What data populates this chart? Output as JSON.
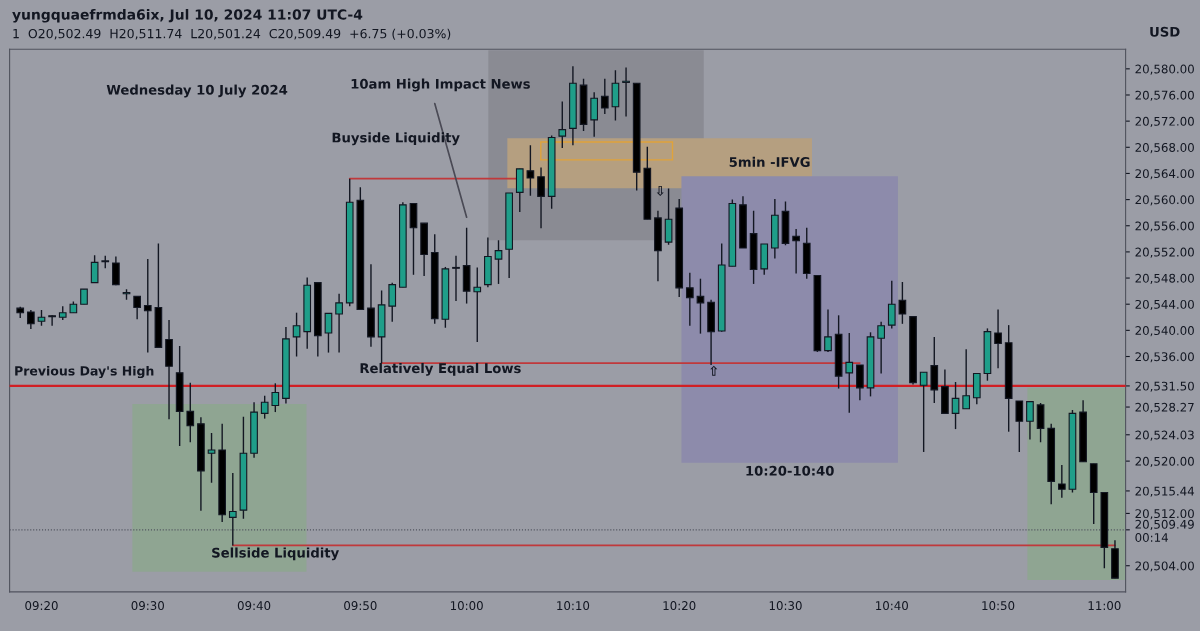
{
  "chart_data": {
    "type": "candlestick",
    "title": "yungquaefrmda6ix, Jul 10, 2024 11:07 UTC-4",
    "subtitle": "1  O20,502.49  H20,511.74  L20,501.24  C20,509.49  +6.75 (+0.03%)",
    "x": [
      "2024-07-10T09:18",
      "2024-07-10T09:19",
      "2024-07-10T09:20",
      "2024-07-10T09:21",
      "2024-07-10T09:22",
      "2024-07-10T09:23",
      "2024-07-10T09:24",
      "2024-07-10T09:25",
      "2024-07-10T09:26",
      "2024-07-10T09:27",
      "2024-07-10T09:28",
      "2024-07-10T09:29",
      "2024-07-10T09:30",
      "2024-07-10T09:31",
      "2024-07-10T09:32",
      "2024-07-10T09:33",
      "2024-07-10T09:34",
      "2024-07-10T09:35",
      "2024-07-10T09:36",
      "2024-07-10T09:37",
      "2024-07-10T09:38",
      "2024-07-10T09:39",
      "2024-07-10T09:40",
      "2024-07-10T09:41",
      "2024-07-10T09:42",
      "2024-07-10T09:43",
      "2024-07-10T09:44",
      "2024-07-10T09:45",
      "2024-07-10T09:46",
      "2024-07-10T09:47",
      "2024-07-10T09:48",
      "2024-07-10T09:49",
      "2024-07-10T09:50",
      "2024-07-10T09:51",
      "2024-07-10T09:52",
      "2024-07-10T09:53",
      "2024-07-10T09:54",
      "2024-07-10T09:55",
      "2024-07-10T09:56",
      "2024-07-10T09:57",
      "2024-07-10T09:58",
      "2024-07-10T09:59",
      "2024-07-10T10:00",
      "2024-07-10T10:01",
      "2024-07-10T10:02",
      "2024-07-10T10:03",
      "2024-07-10T10:04",
      "2024-07-10T10:05",
      "2024-07-10T10:06",
      "2024-07-10T10:07",
      "2024-07-10T10:08",
      "2024-07-10T10:09",
      "2024-07-10T10:10",
      "2024-07-10T10:11",
      "2024-07-10T10:12",
      "2024-07-10T10:13",
      "2024-07-10T10:14",
      "2024-07-10T10:15",
      "2024-07-10T10:16",
      "2024-07-10T10:17",
      "2024-07-10T10:18",
      "2024-07-10T10:19",
      "2024-07-10T10:20",
      "2024-07-10T10:21",
      "2024-07-10T10:22",
      "2024-07-10T10:23",
      "2024-07-10T10:24",
      "2024-07-10T10:25",
      "2024-07-10T10:26",
      "2024-07-10T10:27",
      "2024-07-10T10:28",
      "2024-07-10T10:29",
      "2024-07-10T10:30",
      "2024-07-10T10:31",
      "2024-07-10T10:32",
      "2024-07-10T10:33",
      "2024-07-10T10:34",
      "2024-07-10T10:35",
      "2024-07-10T10:36",
      "2024-07-10T10:37",
      "2024-07-10T10:38",
      "2024-07-10T10:39",
      "2024-07-10T10:40",
      "2024-07-10T10:41",
      "2024-07-10T10:42",
      "2024-07-10T10:43",
      "2024-07-10T10:44",
      "2024-07-10T10:45",
      "2024-07-10T10:46",
      "2024-07-10T10:47",
      "2024-07-10T10:48",
      "2024-07-10T10:49",
      "2024-07-10T10:50",
      "2024-07-10T10:51",
      "2024-07-10T10:52",
      "2024-07-10T10:53",
      "2024-07-10T10:54",
      "2024-07-10T10:55",
      "2024-07-10T10:56",
      "2024-07-10T10:57",
      "2024-07-10T10:58",
      "2024-07-10T10:59",
      "2024-07-10T11:00",
      "2024-07-10T11:01"
    ],
    "ohlc": [
      [
        20543.4,
        20543.6,
        20541.9,
        20542.7
      ],
      [
        20542.8,
        20543.1,
        20540.2,
        20541.0
      ],
      [
        20541.4,
        20543.1,
        20540.7,
        20542.0
      ],
      [
        20542.1,
        20542.3,
        20540.7,
        20542.1
      ],
      [
        20542.0,
        20543.7,
        20541.6,
        20542.7
      ],
      [
        20542.7,
        20544.4,
        20542.7,
        20544.0
      ],
      [
        20544.0,
        20546.3,
        20544.0,
        20546.3
      ],
      [
        20547.3,
        20551.5,
        20547.3,
        20550.4
      ],
      [
        20550.5,
        20551.4,
        20549.5,
        20550.5
      ],
      [
        20550.3,
        20551.3,
        20546.9,
        20547.0
      ],
      [
        20545.6,
        20546.3,
        20544.7,
        20545.8
      ],
      [
        20545.2,
        20545.2,
        20541.7,
        20543.5
      ],
      [
        20543.8,
        20550.9,
        20536.6,
        20543.0
      ],
      [
        20543.5,
        20553.3,
        20537.4,
        20537.4
      ],
      [
        20538.6,
        20541.6,
        20526.4,
        20534.5
      ],
      [
        20533.5,
        20537.6,
        20522.3,
        20527.6
      ],
      [
        20527.6,
        20532.0,
        20522.9,
        20525.4
      ],
      [
        20525.7,
        20526.7,
        20512.4,
        20518.5
      ],
      [
        20521.2,
        20524.3,
        20516.7,
        20521.7
      ],
      [
        20521.7,
        20525.7,
        20510.7,
        20511.8
      ],
      [
        20511.4,
        20518.2,
        20507.1,
        20512.3
      ],
      [
        20512.5,
        20526.8,
        20511.2,
        20521.2
      ],
      [
        20521.2,
        20529.0,
        20520.5,
        20527.5
      ],
      [
        20527.3,
        20530.0,
        20526.5,
        20529.0
      ],
      [
        20528.5,
        20531.9,
        20527.5,
        20530.5
      ],
      [
        20529.6,
        20540.5,
        20528.8,
        20538.7
      ],
      [
        20539.0,
        20542.7,
        20536.0,
        20540.7
      ],
      [
        20539.8,
        20548.1,
        20537.2,
        20546.9
      ],
      [
        20547.3,
        20547.3,
        20536.0,
        20539.2
      ],
      [
        20539.6,
        20542.6,
        20536.6,
        20542.6
      ],
      [
        20542.5,
        20545.6,
        20536.6,
        20544.2
      ],
      [
        20544.2,
        20563.2,
        20543.7,
        20559.6
      ],
      [
        20559.9,
        20561.9,
        20543.2,
        20543.2
      ],
      [
        20543.4,
        20550.1,
        20537.5,
        20539.0
      ],
      [
        20539.0,
        20546.1,
        20535.0,
        20543.9
      ],
      [
        20543.7,
        20547.3,
        20541.3,
        20547.0
      ],
      [
        20546.6,
        20559.6,
        20546.6,
        20559.2
      ],
      [
        20559.4,
        20559.4,
        20548.5,
        20555.7
      ],
      [
        20556.4,
        20556.4,
        20548.3,
        20551.6
      ],
      [
        20551.9,
        20554.7,
        20541.0,
        20541.8
      ],
      [
        20541.7,
        20549.7,
        20540.4,
        20549.4
      ],
      [
        20549.5,
        20551.4,
        20544.5,
        20549.5
      ],
      [
        20549.9,
        20555.7,
        20544.1,
        20546.0
      ],
      [
        20545.9,
        20549.6,
        20538.2,
        20546.6
      ],
      [
        20547.0,
        20554.2,
        20546.6,
        20551.3
      ],
      [
        20550.9,
        20553.8,
        20547.1,
        20552.2
      ],
      [
        20552.4,
        20561.0,
        20548.0,
        20561.0
      ],
      [
        20561.1,
        20564.7,
        20558.1,
        20564.7
      ],
      [
        20564.4,
        20568.3,
        20560.6,
        20563.3
      ],
      [
        20563.5,
        20564.9,
        20555.6,
        20560.5
      ],
      [
        20560.5,
        20569.8,
        20558.6,
        20569.5
      ],
      [
        20569.7,
        20575.0,
        20567.9,
        20570.7
      ],
      [
        20570.9,
        20580.4,
        20568.3,
        20577.8
      ],
      [
        20577.5,
        20578.5,
        20570.5,
        20571.5
      ],
      [
        20572.2,
        20576.4,
        20569.6,
        20575.5
      ],
      [
        20575.8,
        20578.5,
        20573.1,
        20574.0
      ],
      [
        20574.2,
        20579.8,
        20572.1,
        20577.8
      ],
      [
        20577.9,
        20580.2,
        20572.7,
        20578.1
      ],
      [
        20577.8,
        20577.8,
        20561.4,
        20564.2
      ],
      [
        20564.8,
        20568.1,
        20557.0,
        20557.0
      ],
      [
        20557.2,
        20558.3,
        20547.5,
        20552.2
      ],
      [
        20553.5,
        20561.7,
        20553.1,
        20557.0
      ],
      [
        20558.7,
        20560.1,
        20545.1,
        20546.5
      ],
      [
        20546.5,
        20548.8,
        20540.7,
        20545.0
      ],
      [
        20545.2,
        20547.9,
        20539.5,
        20544.2
      ],
      [
        20544.3,
        20544.7,
        20534.7,
        20539.8
      ],
      [
        20539.9,
        20553.3,
        20539.8,
        20550.0
      ],
      [
        20549.8,
        20560.0,
        20549.8,
        20559.4
      ],
      [
        20559.2,
        20560.5,
        20552.6,
        20552.6
      ],
      [
        20554.8,
        20558.3,
        20547.1,
        20549.3
      ],
      [
        20549.4,
        20553.2,
        20548.5,
        20553.2
      ],
      [
        20552.6,
        20560.1,
        20551.0,
        20557.6
      ],
      [
        20558.2,
        20559.7,
        20553.0,
        20553.3
      ],
      [
        20554.4,
        20555.5,
        20548.7,
        20553.7
      ],
      [
        20553.3,
        20555.7,
        20547.9,
        20548.7
      ],
      [
        20548.4,
        20548.4,
        20536.7,
        20536.9
      ],
      [
        20536.9,
        20543.2,
        20536.7,
        20539.0
      ],
      [
        20539.4,
        20542.3,
        20531.1,
        20533.0
      ],
      [
        20533.5,
        20539.6,
        20527.4,
        20535.1
      ],
      [
        20534.7,
        20534.7,
        20529.3,
        20531.2
      ],
      [
        20531.2,
        20539.7,
        20529.9,
        20539.0
      ],
      [
        20538.8,
        20541.3,
        20533.4,
        20540.7
      ],
      [
        20540.8,
        20547.6,
        20540.3,
        20544.0
      ],
      [
        20544.6,
        20547.4,
        20541.0,
        20542.5
      ],
      [
        20542.1,
        20542.1,
        20531.7,
        20532.0
      ],
      [
        20531.6,
        20533.6,
        20521.4,
        20533.6
      ],
      [
        20534.6,
        20539.0,
        20528.9,
        20530.9
      ],
      [
        20531.4,
        20534.0,
        20527.3,
        20527.3
      ],
      [
        20527.3,
        20532.1,
        20524.9,
        20529.6
      ],
      [
        20528.0,
        20537.1,
        20528.0,
        20530.0
      ],
      [
        20529.7,
        20533.4,
        20528.7,
        20533.4
      ],
      [
        20533.4,
        20540.3,
        20532.3,
        20539.8
      ],
      [
        20539.6,
        20543.2,
        20534.2,
        20538.0
      ],
      [
        20538.1,
        20540.8,
        20524.5,
        20529.6
      ],
      [
        20529.2,
        20529.2,
        20521.4,
        20526.1
      ],
      [
        20526.1,
        20529.1,
        20523.3,
        20529.1
      ],
      [
        20528.6,
        20528.9,
        20522.9,
        20525.0
      ],
      [
        20525.0,
        20525.7,
        20513.4,
        20516.9
      ],
      [
        20516.5,
        20519.4,
        20514.4,
        20515.7
      ],
      [
        20515.7,
        20527.8,
        20515.2,
        20527.3
      ],
      [
        20527.5,
        20529.3,
        20519.9,
        20519.9
      ],
      [
        20519.6,
        20519.6,
        20510.4,
        20515.2
      ],
      [
        20515.2,
        20515.2,
        20503.6,
        20506.8
      ],
      [
        20506.6,
        20507.9,
        20502.1,
        20502.1
      ]
    ],
    "colors": [
      "#000000",
      "#000000",
      "#1f9e89",
      "#000000",
      "#1f9e89",
      "#1f9e89",
      "#1f9e89",
      "#1f9e89",
      "#000000",
      "#000000",
      "#1f9e89",
      "#000000",
      "#000000",
      "#000000",
      "#000000",
      "#000000",
      "#000000",
      "#000000",
      "#1f9e89",
      "#000000",
      "#1f9e89",
      "#1f9e89",
      "#1f9e89",
      "#1f9e89",
      "#1f9e89",
      "#1f9e89",
      "#1f9e89",
      "#1f9e89",
      "#000000",
      "#1f9e89",
      "#1f9e89",
      "#1f9e89",
      "#000000",
      "#000000",
      "#1f9e89",
      "#1f9e89",
      "#1f9e89",
      "#000000",
      "#000000",
      "#000000",
      "#1f9e89",
      "#000000",
      "#000000",
      "#1f9e89",
      "#1f9e89",
      "#1f9e89",
      "#1f9e89",
      "#1f9e89",
      "#000000",
      "#000000",
      "#1f9e89",
      "#1f9e89",
      "#1f9e89",
      "#000000",
      "#1f9e89",
      "#000000",
      "#1f9e89",
      "#1f9e89",
      "#000000",
      "#000000",
      "#000000",
      "#1f9e89",
      "#000000",
      "#000000",
      "#000000",
      "#000000",
      "#1f9e89",
      "#1f9e89",
      "#000000",
      "#000000",
      "#1f9e89",
      "#1f9e89",
      "#000000",
      "#000000",
      "#000000",
      "#000000",
      "#1f9e89",
      "#000000",
      "#1f9e89",
      "#000000",
      "#1f9e89",
      "#1f9e89",
      "#1f9e89",
      "#000000",
      "#000000",
      "#1f9e89",
      "#000000",
      "#000000",
      "#1f9e89",
      "#1f9e89",
      "#1f9e89",
      "#1f9e89",
      "#000000",
      "#000000",
      "#000000",
      "#1f9e89",
      "#000000",
      "#000000",
      "#000000",
      "#1f9e89",
      "#000000",
      "#000000",
      "#000000",
      "#000000"
    ],
    "series": [
      {
        "type": "line",
        "x": [
          "2024-07-10T09:49",
          "2024-07-10T10:05"
        ],
        "values": [
          20563.2,
          20563.2
        ],
        "color": "#c0393b"
      },
      {
        "type": "line",
        "x": [
          "2024-07-10T09:52",
          "2024-07-10T10:37"
        ],
        "values": [
          20535.0,
          20535.0
        ],
        "color": "#c0393b"
      },
      {
        "type": "line",
        "x": [
          "2024-07-10T09:38",
          "2024-07-10T11:01"
        ],
        "values": [
          20507.1,
          20507.1
        ],
        "color": "#c0393b"
      },
      {
        "type": "line",
        "x": [
          "2024-07-10T09:57",
          "2024-07-10T10:00"
        ],
        "values": [
          20574.7,
          20557.3
        ],
        "color": "#4a4a55"
      }
    ],
    "ref_lines": [
      {
        "axis": "y",
        "value": 20531.5,
        "label": "Previous Day's High",
        "color": "#d11f24"
      },
      {
        "axis": "y",
        "value": 20509.49,
        "color": "#50535e",
        "line_style": "dotted"
      }
    ],
    "annotations": [
      "Wednesday 10 July 2024",
      "USD",
      "10am High Impact News",
      "Buyside Liquidity",
      "Relatively Equal Lows",
      "Sellside Liquidity",
      "5min -IFVG",
      "10:20-10:40",
      "⇧",
      "⇩"
    ],
    "xlim": [
      "2024-07-10T09:17",
      "2024-07-10T11:02"
    ],
    "xticks": [
      {
        "value": "2024-07-10T09:20",
        "label": "09:20"
      },
      {
        "value": "2024-07-10T09:30",
        "label": "09:30"
      },
      {
        "value": "2024-07-10T09:40",
        "label": "09:40"
      },
      {
        "value": "2024-07-10T09:50",
        "label": "09:50"
      },
      {
        "value": "2024-07-10T10:00",
        "label": "10:00"
      },
      {
        "value": "2024-07-10T10:10",
        "label": "10:10"
      },
      {
        "value": "2024-07-10T10:20",
        "label": "10:20"
      },
      {
        "value": "2024-07-10T10:30",
        "label": "10:30"
      },
      {
        "value": "2024-07-10T10:40",
        "label": "10:40"
      },
      {
        "value": "2024-07-10T10:50",
        "label": "10:50"
      },
      {
        "value": "2024-07-10T11:00",
        "label": "11:00"
      }
    ],
    "ylim": [
      20500,
      20583
    ],
    "yticks": [
      {
        "value": 20504,
        "label": "20,504.00"
      },
      {
        "value": 20509.49,
        "label": "20,509.49\n00:14"
      },
      {
        "value": 20512,
        "label": "20,512.00"
      },
      {
        "value": 20515.44,
        "label": "20,515.44"
      },
      {
        "value": 20520,
        "label": "20,520.00"
      },
      {
        "value": 20524.03,
        "label": "20,524.03"
      },
      {
        "value": 20528.27,
        "label": "20,528.27"
      },
      {
        "value": 20531.5,
        "label": "20,531.50"
      },
      {
        "value": 20536,
        "label": "20,536.00"
      },
      {
        "value": 20540,
        "label": "20,540.00"
      },
      {
        "value": 20544,
        "label": "20,544.00"
      },
      {
        "value": 20548,
        "label": "20,548.00"
      },
      {
        "value": 20552,
        "label": "20,552.00"
      },
      {
        "value": 20556,
        "label": "20,556.00"
      },
      {
        "value": 20560,
        "label": "20,560.00"
      },
      {
        "value": 20564,
        "label": "20,564.00"
      },
      {
        "value": 20568,
        "label": "20,568.00"
      },
      {
        "value": 20572,
        "label": "20,572.00"
      },
      {
        "value": 20576,
        "label": "20,576.00"
      },
      {
        "value": 20580,
        "label": "20,580.00"
      }
    ]
  }
}
